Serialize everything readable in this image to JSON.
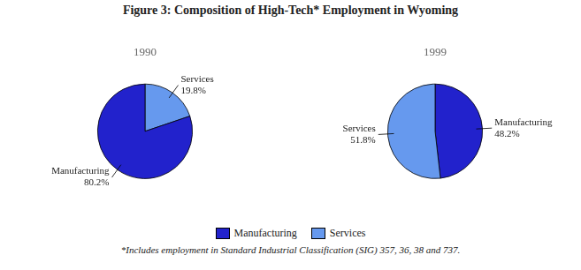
{
  "title": "Figure 3:  Composition of High-Tech* Employment in Wyoming",
  "annotations": [
    "*Includes employment in Standard Industrial Classification (SIG) 357, 36, 38 and 737."
  ],
  "legend": "bottom",
  "series": [
    {
      "name": "Manufacturing",
      "color": "#2222cc"
    },
    {
      "name": "Services",
      "color": "#6699ee"
    }
  ],
  "chart_data": [
    {
      "type": "pie",
      "title": "1990",
      "categories": [
        "Services",
        "Manufacturing"
      ],
      "values": [
        19.8,
        80.2
      ],
      "value_labels": [
        "19.8%",
        "80.2%"
      ],
      "colors": [
        "#6699ee",
        "#2222cc"
      ],
      "data_labels": true
    },
    {
      "type": "pie",
      "title": "1999",
      "categories": [
        "Manufacturing",
        "Services"
      ],
      "values": [
        48.2,
        51.8
      ],
      "value_labels": [
        "48.2%",
        "51.8%"
      ],
      "colors": [
        "#2222cc",
        "#6699ee"
      ],
      "data_labels": true
    }
  ]
}
